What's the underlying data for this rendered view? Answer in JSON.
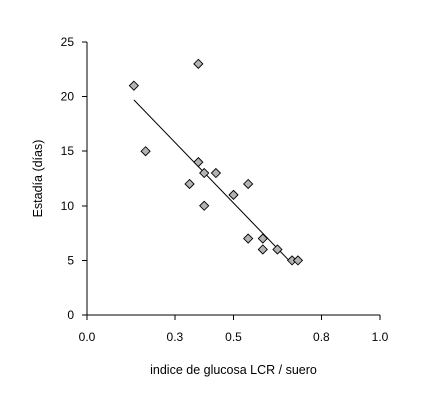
{
  "chart_data": {
    "type": "scatter",
    "title": "",
    "xlabel": "indice de glucosa LCR / suero",
    "ylabel": "Estadía (días)",
    "xlim": [
      0,
      1.0
    ],
    "ylim": [
      0,
      25
    ],
    "x_ticks": [
      0.0,
      0.3,
      0.5,
      0.8,
      1.0
    ],
    "x_tick_labels": [
      "0.0",
      "0.3",
      "0.5",
      "0.8",
      "1.0"
    ],
    "y_ticks": [
      0,
      5,
      10,
      15,
      20,
      25
    ],
    "y_tick_labels": [
      "0",
      "5",
      "10",
      "15",
      "20",
      "25"
    ],
    "grid": false,
    "legend": "none",
    "marker": "diamond",
    "marker_color": "#b3b3b3",
    "series": [
      {
        "points": [
          {
            "x": 0.16,
            "y": 21
          },
          {
            "x": 0.2,
            "y": 15
          },
          {
            "x": 0.35,
            "y": 12
          },
          {
            "x": 0.38,
            "y": 23
          },
          {
            "x": 0.38,
            "y": 14
          },
          {
            "x": 0.4,
            "y": 13
          },
          {
            "x": 0.4,
            "y": 10
          },
          {
            "x": 0.44,
            "y": 13
          },
          {
            "x": 0.5,
            "y": 11
          },
          {
            "x": 0.55,
            "y": 12
          },
          {
            "x": 0.55,
            "y": 7
          },
          {
            "x": 0.6,
            "y": 7
          },
          {
            "x": 0.6,
            "y": 6
          },
          {
            "x": 0.65,
            "y": 6
          },
          {
            "x": 0.7,
            "y": 5
          },
          {
            "x": 0.72,
            "y": 5
          }
        ]
      }
    ],
    "trendline": {
      "x": [
        0.16,
        0.7
      ],
      "y": [
        19.7,
        4.7
      ]
    }
  }
}
